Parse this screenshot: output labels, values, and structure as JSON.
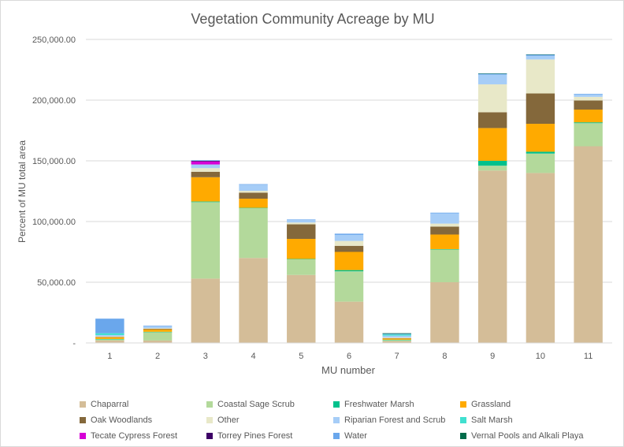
{
  "chart_data": {
    "type": "bar",
    "stacked": true,
    "title": "Vegetation Community Acreage by MU",
    "xlabel": "MU number",
    "ylabel": "Percent of MU total area",
    "ylim": [
      0,
      250000
    ],
    "yticks": [
      0,
      50000,
      100000,
      150000,
      200000,
      250000
    ],
    "ytick_labels": [
      "-",
      "50,000.00",
      "100,000.00",
      "150,000.00",
      "200,000.00",
      "250,000.00"
    ],
    "grid": true,
    "legend_position": "bottom",
    "categories": [
      "1",
      "2",
      "3",
      "4",
      "5",
      "6",
      "7",
      "8",
      "9",
      "10",
      "11"
    ],
    "series": [
      {
        "name": "Chaparral",
        "color": "#d4bd98",
        "values": [
          2000,
          2000,
          53000,
          70000,
          56000,
          34000,
          1500,
          50000,
          142000,
          140000,
          162000
        ]
      },
      {
        "name": "Coastal Sage Scrub",
        "color": "#b3d99b",
        "values": [
          1000,
          7000,
          63000,
          41000,
          13000,
          25000,
          1000,
          27000,
          4000,
          16000,
          19000
        ]
      },
      {
        "name": "Freshwater Marsh",
        "color": "#00c18c",
        "values": [
          300,
          200,
          500,
          300,
          200,
          1000,
          200,
          300,
          4000,
          1500,
          700
        ]
      },
      {
        "name": "Grassland",
        "color": "#ffaa00",
        "values": [
          1500,
          2000,
          20000,
          7500,
          16500,
          15000,
          1000,
          12000,
          27000,
          23000,
          10500
        ]
      },
      {
        "name": "Oak Woodlands",
        "color": "#84683b",
        "values": [
          200,
          500,
          4500,
          5000,
          12000,
          5000,
          300,
          6500,
          13000,
          25000,
          7500
        ]
      },
      {
        "name": "Other",
        "color": "#e8e8c8",
        "values": [
          500,
          500,
          3000,
          1500,
          1500,
          4000,
          500,
          2500,
          23000,
          28000,
          3000
        ]
      },
      {
        "name": "Riparian Forest and Scrub",
        "color": "#a6cdf7",
        "values": [
          1000,
          1500,
          3000,
          5000,
          2000,
          5000,
          1500,
          8500,
          8000,
          3000,
          2000
        ]
      },
      {
        "name": "Salt Marsh",
        "color": "#40e0d0",
        "values": [
          1500,
          0,
          0,
          0,
          0,
          0,
          1000,
          0,
          0,
          0,
          0
        ]
      },
      {
        "name": "Tecate Cypress Forest",
        "color": "#d600d6",
        "values": [
          0,
          0,
          2500,
          0,
          0,
          0,
          0,
          0,
          0,
          0,
          0
        ]
      },
      {
        "name": "Torrey Pines Forest",
        "color": "#3d0066",
        "values": [
          0,
          0,
          500,
          0,
          0,
          0,
          0,
          0,
          0,
          0,
          0
        ]
      },
      {
        "name": "Water",
        "color": "#6aa7ec",
        "values": [
          12000,
          500,
          500,
          500,
          500,
          1000,
          500,
          500,
          800,
          1000,
          500
        ]
      },
      {
        "name": "Vernal Pools and Alkali Playa",
        "color": "#006b4a",
        "values": [
          0,
          0,
          0,
          0,
          0,
          0,
          500,
          0,
          200,
          200,
          0
        ]
      }
    ]
  }
}
